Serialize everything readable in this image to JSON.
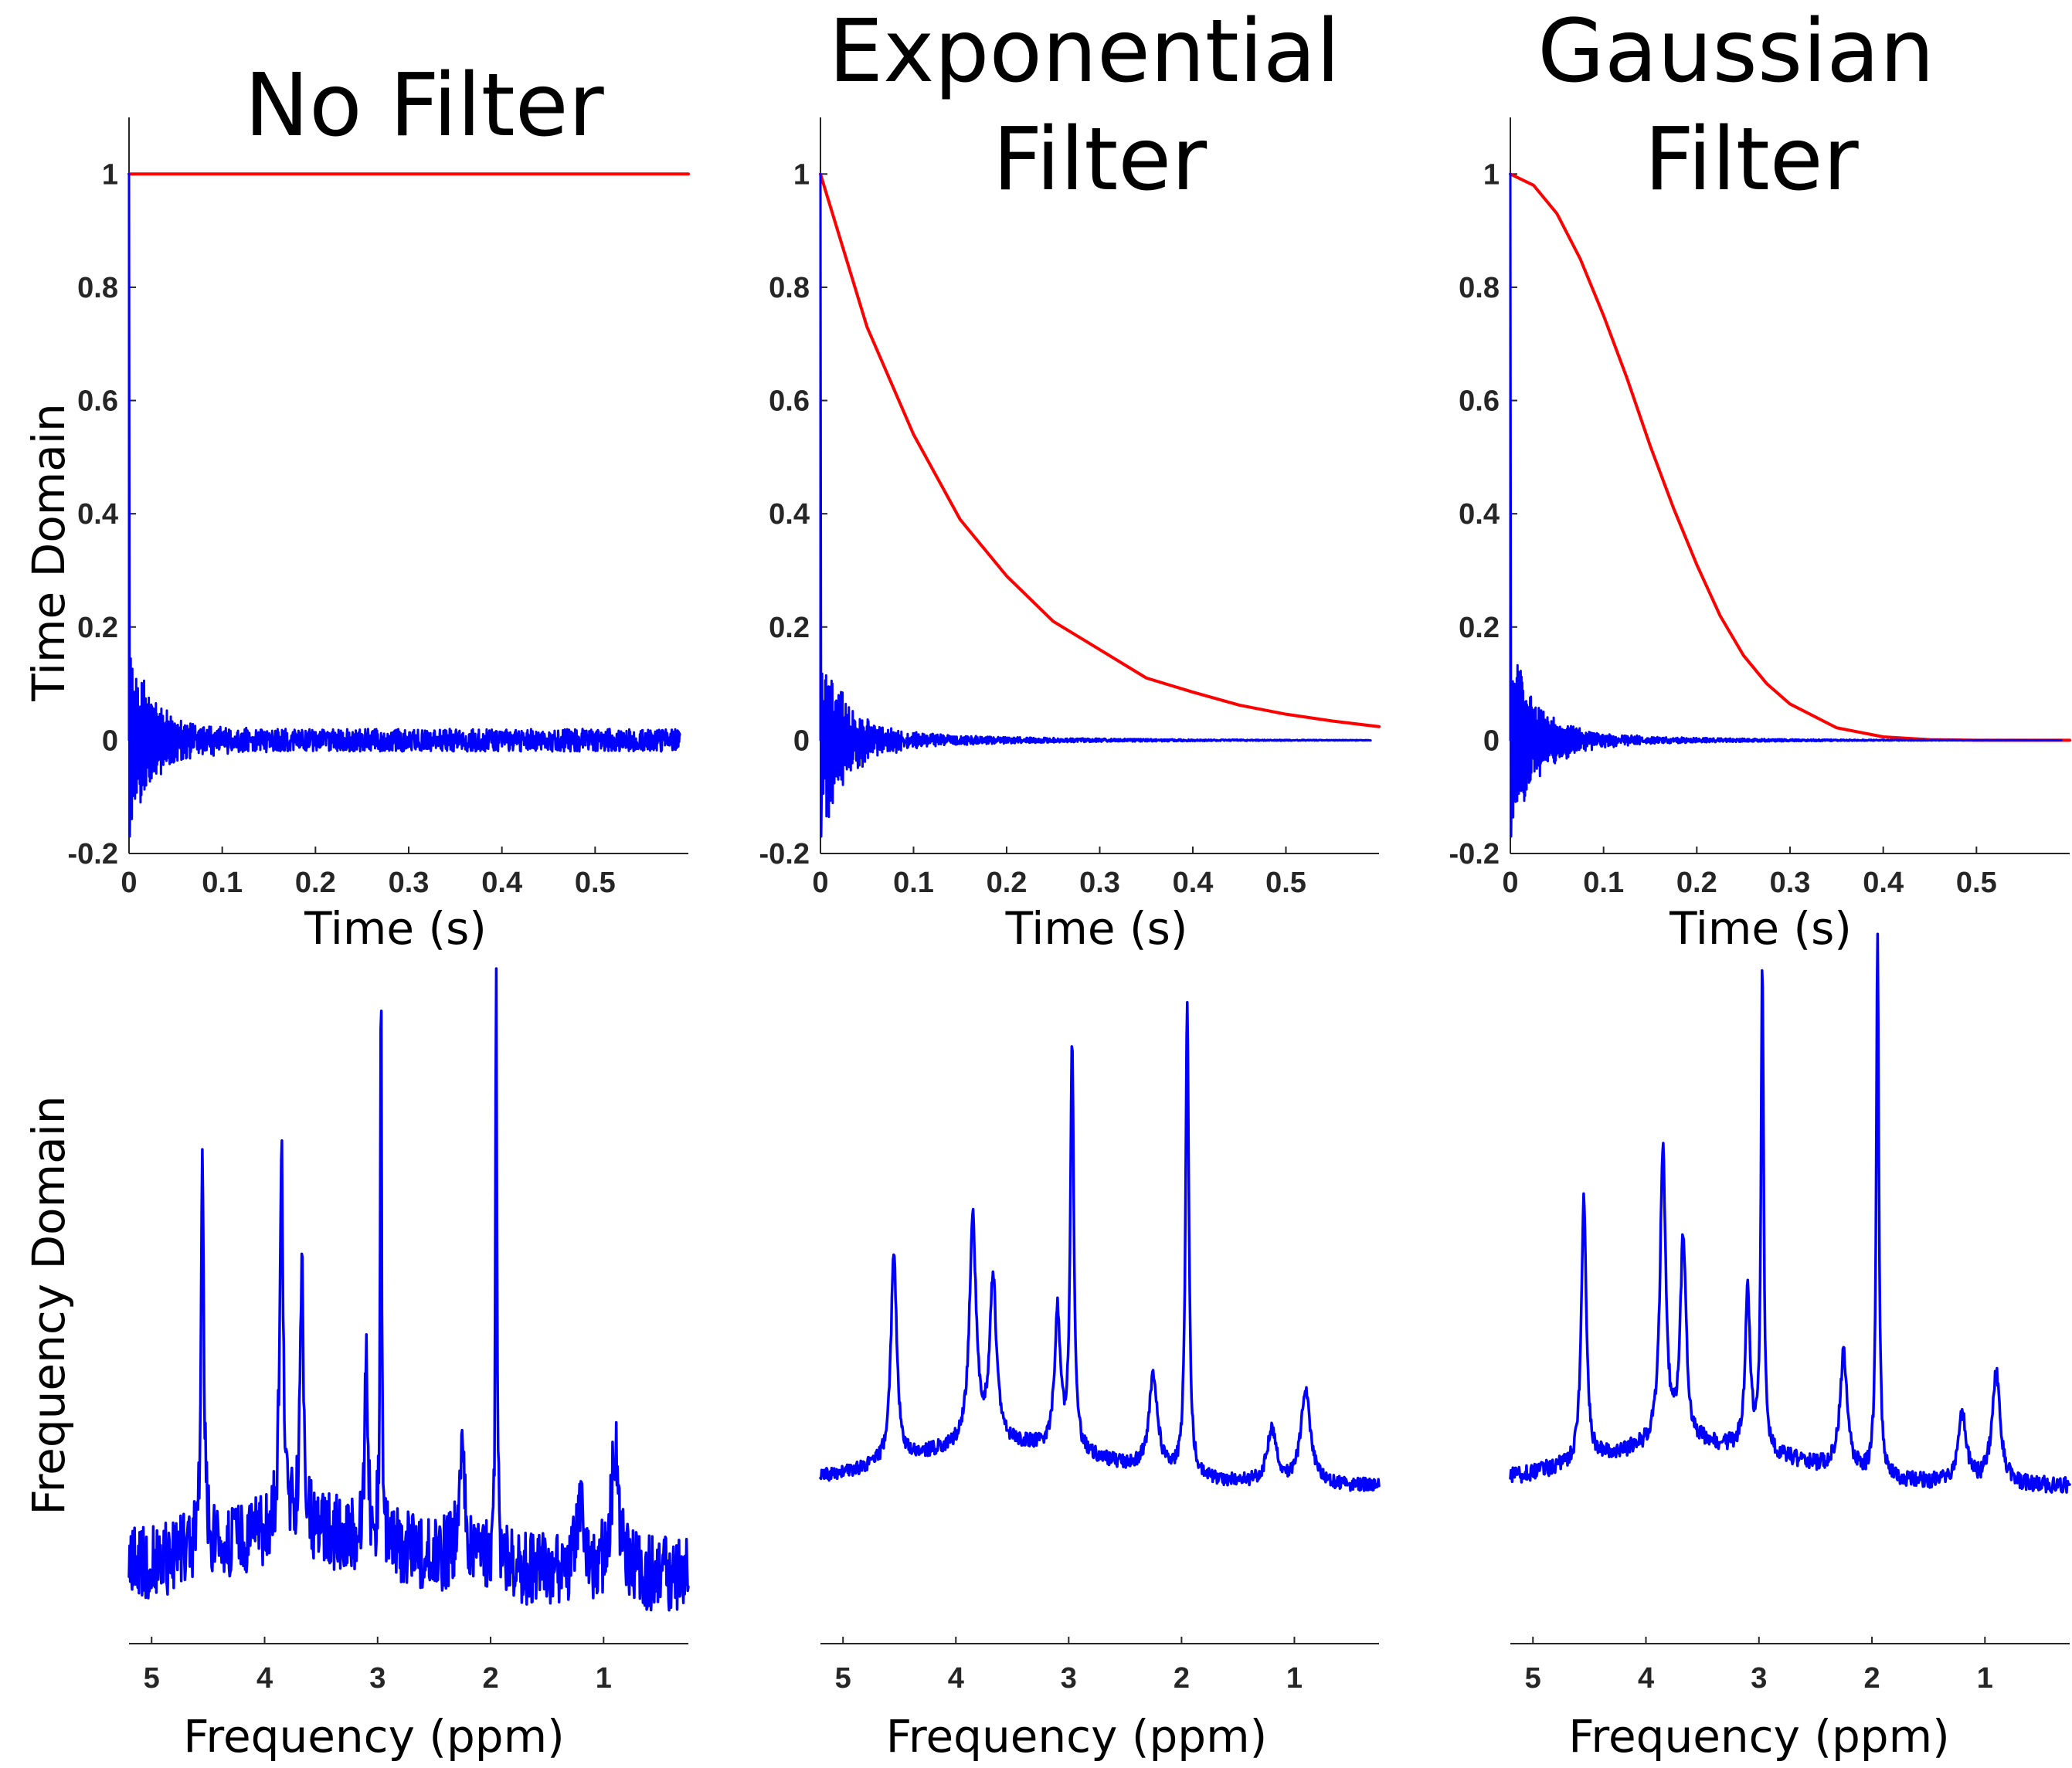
{
  "colors": {
    "signal": "#0000ff",
    "filter": "#ff0000",
    "axis": "#262626"
  },
  "chart_data": [
    {
      "type": "line",
      "title": "No Filter",
      "xlabel": "Time (s)",
      "ylabel": "Time Domain",
      "xlim": [
        0,
        0.6
      ],
      "ylim": [
        -0.2,
        1.1
      ],
      "xticks": [
        "0",
        "0.1",
        "0.2",
        "0.3",
        "0.4",
        "0.5"
      ],
      "yticks": [
        "-0.2",
        "0",
        "0.2",
        "0.4",
        "0.6",
        "0.8",
        "1"
      ],
      "series": [
        {
          "role": "filter",
          "x": [
            0,
            0.6
          ],
          "y": [
            1,
            1
          ]
        },
        {
          "role": "signal",
          "kind": "fid",
          "peak": 1.0,
          "decay_s": 0.03,
          "noise_amplitude": 0.02,
          "damping_s": 0
        }
      ]
    },
    {
      "type": "line",
      "title": "Exponential Filter",
      "xlabel": "Time (s)",
      "ylabel": "",
      "xlim": [
        0,
        0.6
      ],
      "ylim": [
        -0.2,
        1.1
      ],
      "xticks": [
        "0",
        "0.1",
        "0.2",
        "0.3",
        "0.4",
        "0.5"
      ],
      "yticks": [
        "-0.2",
        "0",
        "0.2",
        "0.4",
        "0.6",
        "0.8",
        "1"
      ],
      "series": [
        {
          "role": "filter",
          "x": [
            0,
            0.05,
            0.1,
            0.15,
            0.2,
            0.25,
            0.3,
            0.35,
            0.4,
            0.45,
            0.5,
            0.55,
            0.6
          ],
          "y": [
            1,
            0.73,
            0.54,
            0.39,
            0.29,
            0.21,
            0.16,
            0.11,
            0.085,
            0.062,
            0.046,
            0.034,
            0.024
          ]
        },
        {
          "role": "signal",
          "kind": "fid",
          "peak": 1.0,
          "decay_s": 0.03,
          "noise_amplitude": 0.02,
          "damping_s": 0.16
        }
      ]
    },
    {
      "type": "line",
      "title": "Gaussian Filter",
      "xlabel": "Time (s)",
      "ylabel": "",
      "xlim": [
        0,
        0.6
      ],
      "ylim": [
        -0.2,
        1.1
      ],
      "xticks": [
        "0",
        "0.1",
        "0.2",
        "0.3",
        "0.4",
        "0.5"
      ],
      "yticks": [
        "-0.2",
        "0",
        "0.2",
        "0.4",
        "0.6",
        "0.8",
        "1"
      ],
      "series": [
        {
          "role": "filter",
          "x": [
            0,
            0.025,
            0.05,
            0.075,
            0.1,
            0.125,
            0.15,
            0.175,
            0.2,
            0.225,
            0.25,
            0.275,
            0.3,
            0.35,
            0.4,
            0.45,
            0.5,
            0.55,
            0.6
          ],
          "y": [
            1,
            0.98,
            0.93,
            0.85,
            0.75,
            0.64,
            0.52,
            0.41,
            0.31,
            0.22,
            0.15,
            0.1,
            0.064,
            0.022,
            0.006,
            0.001,
            0,
            0,
            0
          ]
        },
        {
          "role": "signal",
          "kind": "fid",
          "peak": 1.0,
          "decay_s": 0.03,
          "noise_amplitude": 0.02,
          "damping_s": 0.13
        }
      ]
    },
    {
      "type": "line",
      "title": "",
      "xlabel": "Frequency (ppm)",
      "ylabel": "Frequency Domain",
      "xlim": [
        5.2,
        0.25
      ],
      "x_reversed": true,
      "ylim": [
        0,
        1
      ],
      "xticks": [
        "5",
        "4",
        "3",
        "2",
        "1"
      ],
      "series": [
        {
          "role": "signal",
          "baseline": 0.1,
          "noise_amplitude": 0.055,
          "peaks": [
            {
              "ppm": 4.55,
              "height": 0.58,
              "width": 0.015
            },
            {
              "ppm": 3.85,
              "height": 0.53,
              "width": 0.02
            },
            {
              "ppm": 3.67,
              "height": 0.37,
              "width": 0.02
            },
            {
              "ppm": 3.1,
              "height": 0.3,
              "width": 0.015
            },
            {
              "ppm": 2.97,
              "height": 0.82,
              "width": 0.008
            },
            {
              "ppm": 2.25,
              "height": 0.18,
              "width": 0.03
            },
            {
              "ppm": 1.95,
              "height": 0.88,
              "width": 0.008
            },
            {
              "ppm": 1.2,
              "height": 0.1,
              "width": 0.04
            },
            {
              "ppm": 0.9,
              "height": 0.18,
              "width": 0.04
            }
          ]
        }
      ]
    },
    {
      "type": "line",
      "title": "",
      "xlabel": "Frequency (ppm)",
      "ylabel": "",
      "xlim": [
        5.2,
        0.25
      ],
      "x_reversed": true,
      "ylim": [
        0,
        1
      ],
      "xticks": [
        "5",
        "4",
        "3",
        "2",
        "1"
      ],
      "series": [
        {
          "role": "signal",
          "baseline": 0.23,
          "noise_amplitude": 0.01,
          "peaks": [
            {
              "ppm": 4.55,
              "height": 0.31,
              "width": 0.03
            },
            {
              "ppm": 3.85,
              "height": 0.33,
              "width": 0.035
            },
            {
              "ppm": 3.67,
              "height": 0.24,
              "width": 0.035
            },
            {
              "ppm": 3.1,
              "height": 0.2,
              "width": 0.03
            },
            {
              "ppm": 2.97,
              "height": 0.6,
              "width": 0.018
            },
            {
              "ppm": 2.25,
              "height": 0.14,
              "width": 0.045
            },
            {
              "ppm": 1.95,
              "height": 0.68,
              "width": 0.018
            },
            {
              "ppm": 1.2,
              "height": 0.08,
              "width": 0.05
            },
            {
              "ppm": 0.9,
              "height": 0.14,
              "width": 0.05
            }
          ]
        }
      ]
    },
    {
      "type": "line",
      "title": "",
      "xlabel": "Frequency (ppm)",
      "ylabel": "",
      "xlim": [
        5.2,
        0.25
      ],
      "x_reversed": true,
      "ylim": [
        0,
        1
      ],
      "xticks": [
        "5",
        "4",
        "3",
        "2",
        "1"
      ],
      "series": [
        {
          "role": "signal",
          "baseline": 0.23,
          "noise_amplitude": 0.012,
          "peaks": [
            {
              "ppm": 4.55,
              "height": 0.39,
              "width": 0.025
            },
            {
              "ppm": 3.85,
              "height": 0.43,
              "width": 0.03
            },
            {
              "ppm": 3.67,
              "height": 0.3,
              "width": 0.03
            },
            {
              "ppm": 3.1,
              "height": 0.24,
              "width": 0.025
            },
            {
              "ppm": 2.97,
              "height": 0.71,
              "width": 0.014
            },
            {
              "ppm": 2.25,
              "height": 0.17,
              "width": 0.04
            },
            {
              "ppm": 1.95,
              "height": 0.79,
              "width": 0.014
            },
            {
              "ppm": 1.2,
              "height": 0.1,
              "width": 0.045
            },
            {
              "ppm": 0.9,
              "height": 0.16,
              "width": 0.045
            }
          ]
        }
      ]
    }
  ]
}
